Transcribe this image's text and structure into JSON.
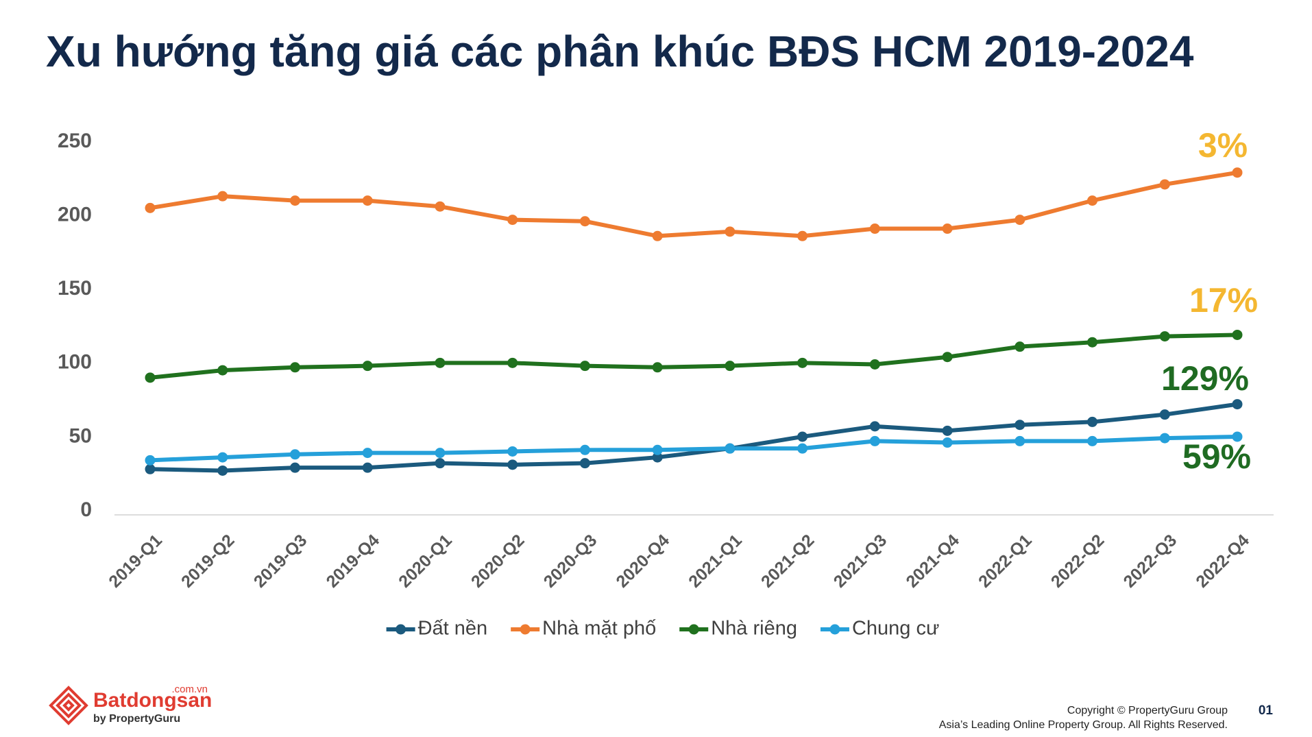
{
  "chart_data": {
    "type": "line",
    "title": "Xu hướng tăng giá các phân khúc BĐS HCM 2019-2024",
    "categories": [
      "2019-Q1",
      "2019-Q2",
      "2019-Q3",
      "2019-Q4",
      "2020-Q1",
      "2020-Q2",
      "2020-Q3",
      "2020-Q4",
      "2021-Q1",
      "2021-Q2",
      "2021-Q3",
      "2021-Q4",
      "2022-Q1",
      "2022-Q2",
      "2022-Q3",
      "2022-Q4"
    ],
    "series": [
      {
        "name": "Đất nền",
        "color": "#1b5a7e",
        "values": [
          31,
          30,
          32,
          32,
          35,
          34,
          35,
          39,
          45,
          53,
          60,
          57,
          61,
          63,
          68,
          75
        ]
      },
      {
        "name": "Nhà mặt phố",
        "color": "#ee7b30",
        "values": [
          208,
          216,
          213,
          213,
          209,
          200,
          199,
          189,
          192,
          189,
          194,
          194,
          200,
          213,
          224,
          232
        ]
      },
      {
        "name": "Nhà riêng",
        "color": "#20711e",
        "values": [
          93,
          98,
          100,
          101,
          103,
          103,
          101,
          100,
          101,
          103,
          102,
          107,
          114,
          117,
          121,
          122
        ]
      },
      {
        "name": "Chung cư",
        "color": "#25a0da",
        "values": [
          37,
          39,
          41,
          42,
          42,
          43,
          44,
          44,
          45,
          45,
          50,
          49,
          50,
          50,
          52,
          53
        ]
      }
    ],
    "ylim": [
      0,
      250
    ],
    "yticks": [
      0,
      50,
      100,
      150,
      200,
      250
    ],
    "grid": false,
    "annotations": [
      {
        "text": "3%",
        "color": "#f4b731"
      },
      {
        "text": "17%",
        "color": "#f4b731"
      },
      {
        "text": "129%",
        "color": "#1f6b22"
      },
      {
        "text": "59%",
        "color": "#1f6b22"
      }
    ]
  },
  "footer": {
    "logo": "Batdongsan",
    "logo_domain": ".com.vn",
    "logo_sub": "by PropertyGuru",
    "copyright": "Copyright © PropertyGuru Group",
    "rights": "Asia’s Leading Online Property Group. All Rights Reserved.",
    "page": "01"
  }
}
